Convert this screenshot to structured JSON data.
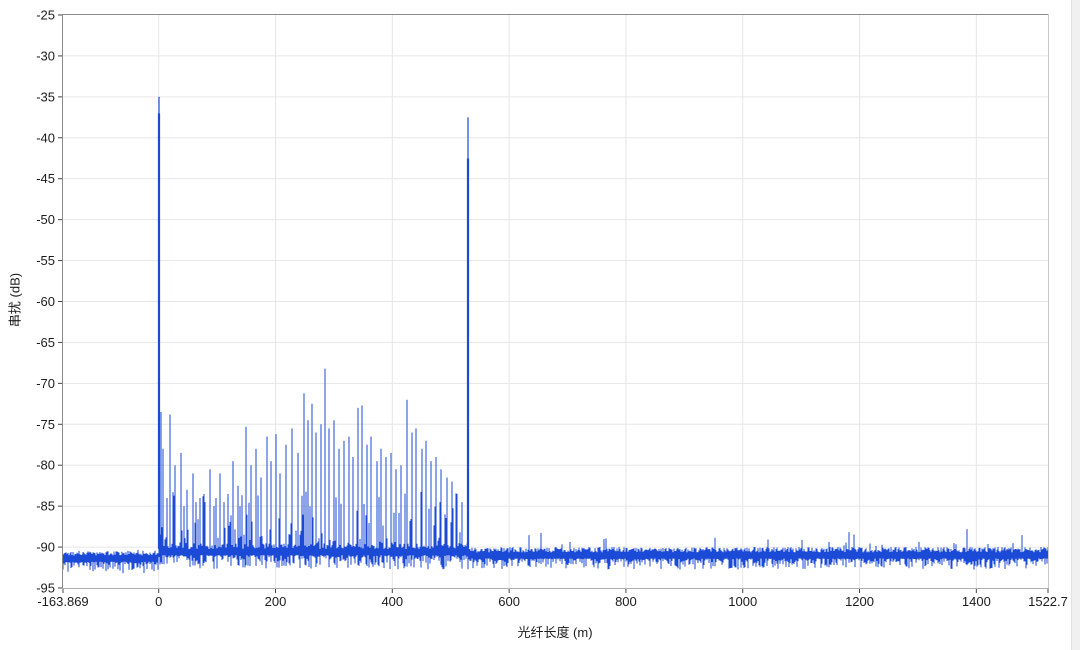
{
  "chart_data": {
    "type": "line",
    "title": "",
    "xlabel": "光纤长度 (m)",
    "ylabel": "串扰 (dB)",
    "xlim": [
      -163.869,
      1522.7
    ],
    "ylim": [
      -95,
      -25
    ],
    "x_ticks": [
      {
        "value": -163.869,
        "label": "-163.869"
      },
      {
        "value": 0,
        "label": "0"
      },
      {
        "value": 200,
        "label": "200"
      },
      {
        "value": 400,
        "label": "400"
      },
      {
        "value": 600,
        "label": "600"
      },
      {
        "value": 800,
        "label": "800"
      },
      {
        "value": 1000,
        "label": "1000"
      },
      {
        "value": 1200,
        "label": "1200"
      },
      {
        "value": 1400,
        "label": "1400"
      },
      {
        "value": 1522.7,
        "label": "1522.7"
      }
    ],
    "y_ticks": [
      {
        "value": -25,
        "label": "-25"
      },
      {
        "value": -30,
        "label": "-30"
      },
      {
        "value": -35,
        "label": "-35"
      },
      {
        "value": -40,
        "label": "-40"
      },
      {
        "value": -45,
        "label": "-45"
      },
      {
        "value": -50,
        "label": "-50"
      },
      {
        "value": -55,
        "label": "-55"
      },
      {
        "value": -60,
        "label": "-60"
      },
      {
        "value": -65,
        "label": "-65"
      },
      {
        "value": -70,
        "label": "-70"
      },
      {
        "value": -75,
        "label": "-75"
      },
      {
        "value": -80,
        "label": "-80"
      },
      {
        "value": -85,
        "label": "-85"
      },
      {
        "value": -90,
        "label": "-90"
      },
      {
        "value": -95,
        "label": "-95"
      }
    ],
    "grid": {
      "x_values": [
        0,
        200,
        400,
        600,
        800,
        1000,
        1200,
        1400
      ],
      "y_values": [
        -30,
        -35,
        -40,
        -45,
        -50,
        -55,
        -60,
        -65,
        -70,
        -75,
        -80,
        -85,
        -90
      ]
    },
    "line_color": "#1b4ad6",
    "colors": {
      "grid": "#e6e6e6",
      "border_dark": "#8a8a8a",
      "border_light": "#c8c8c8",
      "border_bottom": "#b0b0b0",
      "tick": "#444444",
      "text": "#1c1c1c"
    },
    "major_peaks": [
      {
        "x": 0,
        "y": -35.0,
        "thick_from": -37.0
      },
      {
        "x": 530,
        "y": -37.5,
        "thick_from": -42.5
      }
    ],
    "spikes": [
      {
        "x": 4,
        "y": -73.5
      },
      {
        "x": 8,
        "y": -78
      },
      {
        "x": 15,
        "y": -84
      },
      {
        "x": 20,
        "y": -73.8
      },
      {
        "x": 28,
        "y": -80
      },
      {
        "x": 38,
        "y": -78.5
      },
      {
        "x": 44,
        "y": -85
      },
      {
        "x": 48,
        "y": -83
      },
      {
        "x": 58,
        "y": -81
      },
      {
        "x": 64,
        "y": -84.5
      },
      {
        "x": 70,
        "y": -84
      },
      {
        "x": 78,
        "y": -83.5
      },
      {
        "x": 88,
        "y": -80.5
      },
      {
        "x": 95,
        "y": -85
      },
      {
        "x": 98,
        "y": -84
      },
      {
        "x": 105,
        "y": -81
      },
      {
        "x": 112,
        "y": -84.5
      },
      {
        "x": 118,
        "y": -83.5
      },
      {
        "x": 128,
        "y": -79.5
      },
      {
        "x": 135,
        "y": -82.5
      },
      {
        "x": 142,
        "y": -84
      },
      {
        "x": 150,
        "y": -75.3
      },
      {
        "x": 158,
        "y": -80
      },
      {
        "x": 167,
        "y": -78
      },
      {
        "x": 175,
        "y": -81.5
      },
      {
        "x": 185,
        "y": -76.5
      },
      {
        "x": 193,
        "y": -79.5
      },
      {
        "x": 200,
        "y": -76.2
      },
      {
        "x": 208,
        "y": -81
      },
      {
        "x": 218,
        "y": -77.5
      },
      {
        "x": 228,
        "y": -75.5
      },
      {
        "x": 238,
        "y": -78.5
      },
      {
        "x": 248,
        "y": -71.2
      },
      {
        "x": 256,
        "y": -74.5
      },
      {
        "x": 263,
        "y": -72.5
      },
      {
        "x": 270,
        "y": -76
      },
      {
        "x": 278,
        "y": -75
      },
      {
        "x": 285,
        "y": -68.2
      },
      {
        "x": 292,
        "y": -75.5
      },
      {
        "x": 300,
        "y": -74.5
      },
      {
        "x": 308,
        "y": -78
      },
      {
        "x": 317,
        "y": -77
      },
      {
        "x": 325,
        "y": -76.5
      },
      {
        "x": 333,
        "y": -79
      },
      {
        "x": 341,
        "y": -73
      },
      {
        "x": 348,
        "y": -72.7
      },
      {
        "x": 356,
        "y": -77.5
      },
      {
        "x": 364,
        "y": -76.5
      },
      {
        "x": 373,
        "y": -79.5
      },
      {
        "x": 381,
        "y": -78
      },
      {
        "x": 390,
        "y": -79
      },
      {
        "x": 398,
        "y": -78.5
      },
      {
        "x": 407,
        "y": -80.5
      },
      {
        "x": 415,
        "y": -80
      },
      {
        "x": 425,
        "y": -72
      },
      {
        "x": 433,
        "y": -76
      },
      {
        "x": 441,
        "y": -75.5
      },
      {
        "x": 450,
        "y": -78
      },
      {
        "x": 458,
        "y": -77
      },
      {
        "x": 466,
        "y": -79.5
      },
      {
        "x": 475,
        "y": -79
      },
      {
        "x": 484,
        "y": -80.5
      },
      {
        "x": 493,
        "y": -81.5
      },
      {
        "x": 502,
        "y": -82
      },
      {
        "x": 511,
        "y": -83.5
      },
      {
        "x": 520,
        "y": -84.5
      },
      {
        "x": 1384,
        "y": -87.8
      }
    ],
    "noise_regions": [
      {
        "x_start": -163.869,
        "x_end": 0,
        "base": -91.3,
        "up_small": 1.1,
        "up_chance": 0.06,
        "up_max": 1.8,
        "down": 1.9
      },
      {
        "x_start": 0,
        "x_end": 530,
        "base": -90.5,
        "up_small": 1.3,
        "up_chance": 0.5,
        "up_max": 7.0,
        "down": 2.3
      },
      {
        "x_start": 530,
        "x_end": 1522.7,
        "base": -90.9,
        "up_small": 1.2,
        "up_chance": 0.08,
        "up_max": 2.4,
        "down": 1.8
      }
    ],
    "seed": 1337
  }
}
